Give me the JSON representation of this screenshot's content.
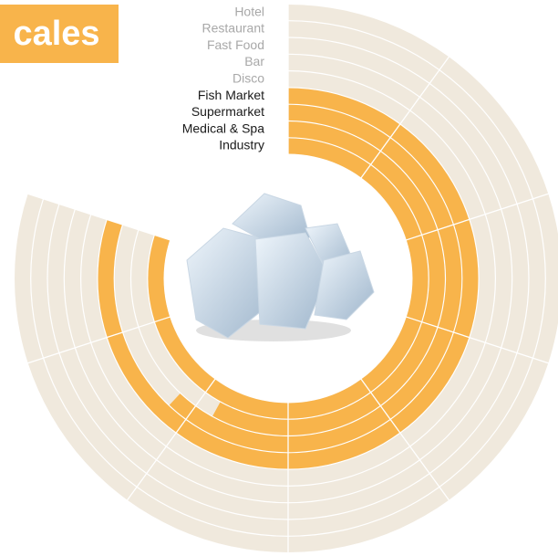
{
  "chart_data": {
    "type": "radial_bar",
    "title": "cales",
    "categories": [
      "Hotel",
      "Restaurant",
      "Fast Food",
      "Bar",
      "Disco",
      "Fish Market",
      "Supermarket",
      "Medical & Spa",
      "Industry"
    ],
    "values": [
      0,
      0,
      0,
      0,
      0,
      80,
      62,
      58,
      80
    ],
    "color": "#f8b44b",
    "track_color": "#f0e9dd",
    "xlim": [
      0,
      80
    ],
    "xticks": [
      0,
      10,
      20,
      30,
      40,
      50,
      60,
      70,
      80
    ]
  }
}
